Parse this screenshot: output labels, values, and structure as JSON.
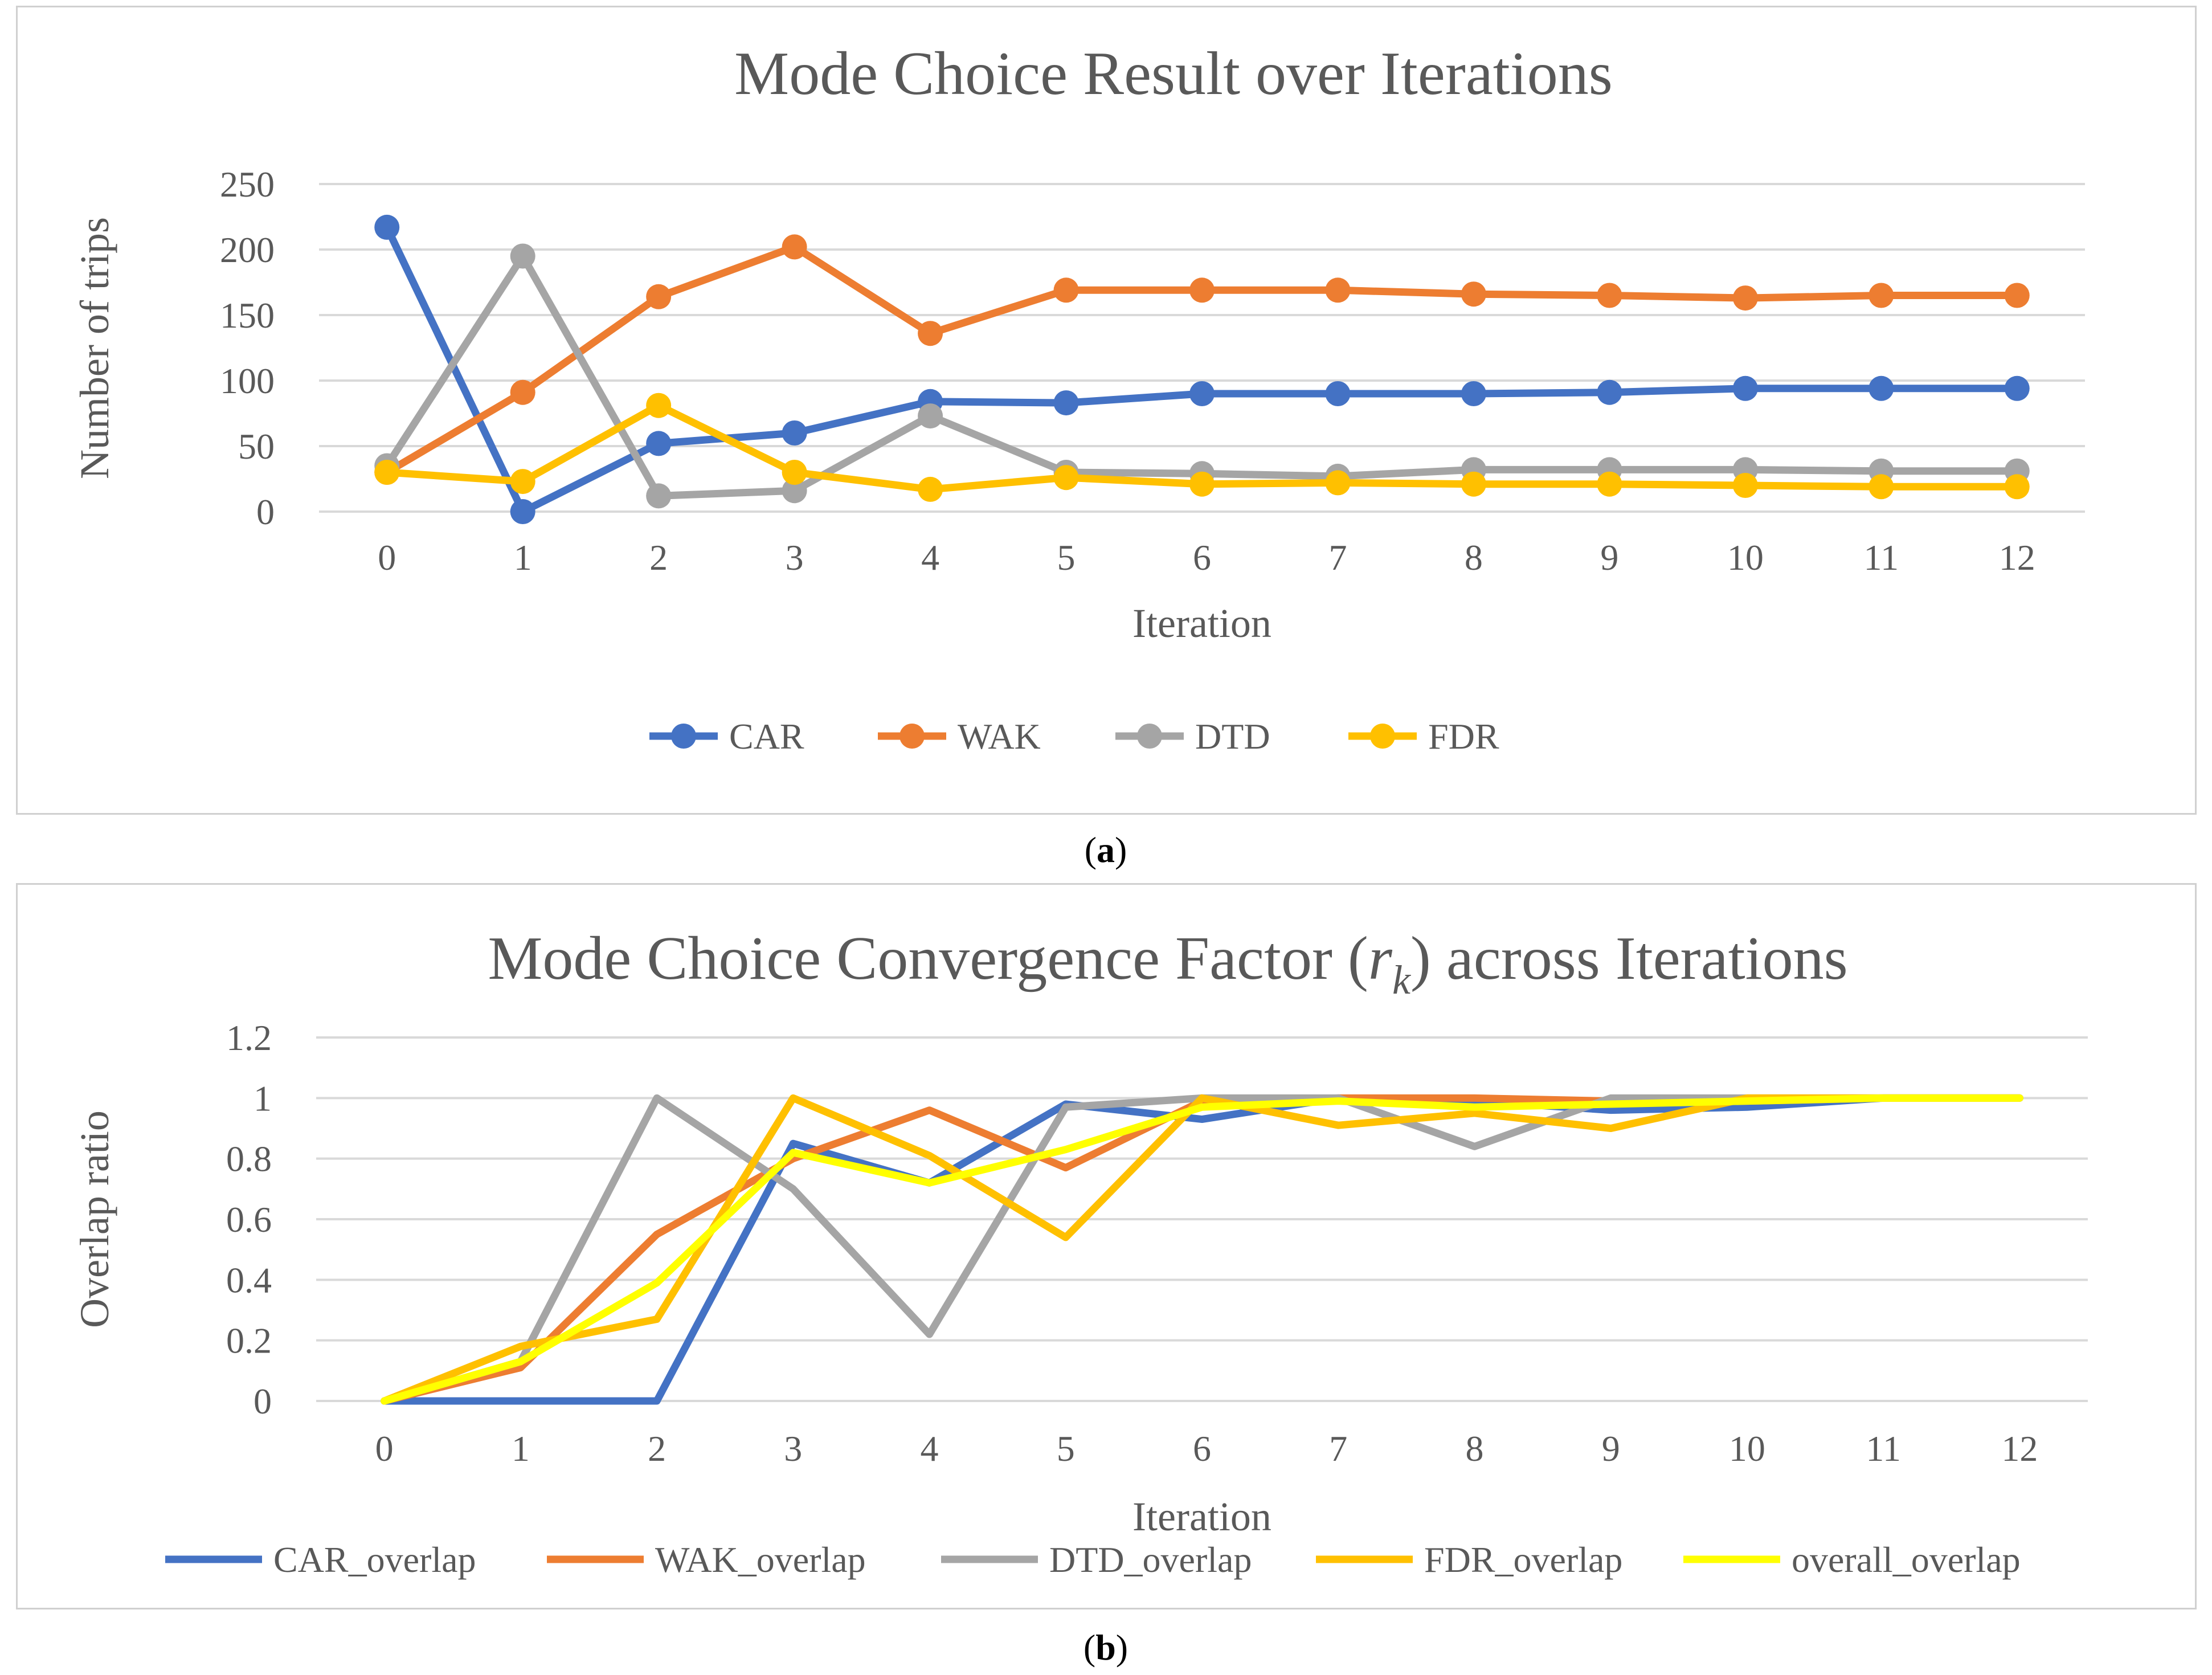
{
  "panel_a": {
    "caption_open": "(",
    "caption_letter": "a",
    "caption_close": ")"
  },
  "panel_b": {
    "caption_open": "(",
    "caption_letter": "b",
    "caption_close": ")"
  },
  "chart_data": [
    {
      "type": "line",
      "title": "Mode Choice Result over Iterations",
      "xlabel": "Iteration",
      "ylabel": "Number of trips",
      "categories": [
        "0",
        "1",
        "2",
        "3",
        "4",
        "5",
        "6",
        "7",
        "8",
        "9",
        "10",
        "11",
        "12"
      ],
      "ylim": [
        0,
        250
      ],
      "yticks": [
        0,
        50,
        100,
        150,
        200,
        250
      ],
      "ytick_labels": [
        "0",
        "50",
        "100",
        "150",
        "200",
        "250"
      ],
      "markers": true,
      "legend_position": "bottom",
      "series": [
        {
          "name": "CAR",
          "color": "#4472c4",
          "values": [
            217,
            0,
            52,
            60,
            84,
            83,
            90,
            90,
            90,
            91,
            94,
            94,
            94
          ]
        },
        {
          "name": "WAK",
          "color": "#ed7d31",
          "values": [
            30,
            91,
            164,
            202,
            136,
            169,
            169,
            169,
            166,
            165,
            163,
            165,
            165
          ]
        },
        {
          "name": "DTD",
          "color": "#a5a5a5",
          "values": [
            35,
            195,
            12,
            16,
            73,
            30,
            29,
            27,
            32,
            32,
            32,
            31,
            31
          ]
        },
        {
          "name": "FDR",
          "color": "#ffc000",
          "values": [
            30,
            23,
            81,
            30,
            17,
            26,
            21,
            22,
            21,
            21,
            20,
            19,
            19
          ]
        }
      ]
    },
    {
      "type": "line",
      "title_prefix": "Mode Choice Convergence Factor (",
      "title_var": "r",
      "title_sub": "k",
      "title_suffix": ") across Iterations",
      "xlabel": "Iteration",
      "ylabel": "Overlap ratio",
      "categories": [
        "0",
        "1",
        "2",
        "3",
        "4",
        "5",
        "6",
        "7",
        "8",
        "9",
        "10",
        "11",
        "12"
      ],
      "ylim": [
        0,
        1.2
      ],
      "yticks": [
        0,
        0.2,
        0.4,
        0.6,
        0.8,
        1.0,
        1.2
      ],
      "ytick_labels": [
        "0",
        "0.2",
        "0.4",
        "0.6",
        "0.8",
        "1",
        "1.2"
      ],
      "markers": false,
      "legend_position": "bottom",
      "series": [
        {
          "name": "CAR_overlap",
          "color": "#4472c4",
          "values": [
            0,
            0,
            0,
            0.85,
            0.72,
            0.98,
            0.93,
            1.0,
            0.99,
            0.96,
            0.97,
            1.0,
            1.0
          ]
        },
        {
          "name": "WAK_overlap",
          "color": "#ed7d31",
          "values": [
            0,
            0.11,
            0.55,
            0.8,
            0.96,
            0.77,
            0.99,
            1.0,
            1.0,
            0.99,
            0.99,
            1.0,
            1.0
          ]
        },
        {
          "name": "DTD_overlap",
          "color": "#a5a5a5",
          "values": [
            0,
            0.13,
            1.0,
            0.7,
            0.22,
            0.97,
            1.0,
            1.0,
            0.84,
            1.0,
            1.0,
            1.0,
            1.0
          ]
        },
        {
          "name": "FDR_overlap",
          "color": "#ffc000",
          "values": [
            0,
            0.18,
            0.27,
            1.0,
            0.81,
            0.54,
            1.0,
            0.91,
            0.95,
            0.9,
            1.0,
            1.0,
            1.0
          ]
        },
        {
          "name": "overall_overlap",
          "color": "#ffff00",
          "values": [
            0,
            0.13,
            0.39,
            0.82,
            0.72,
            0.83,
            0.97,
            0.99,
            0.97,
            0.98,
            0.99,
            1.0,
            1.0
          ]
        }
      ]
    }
  ]
}
